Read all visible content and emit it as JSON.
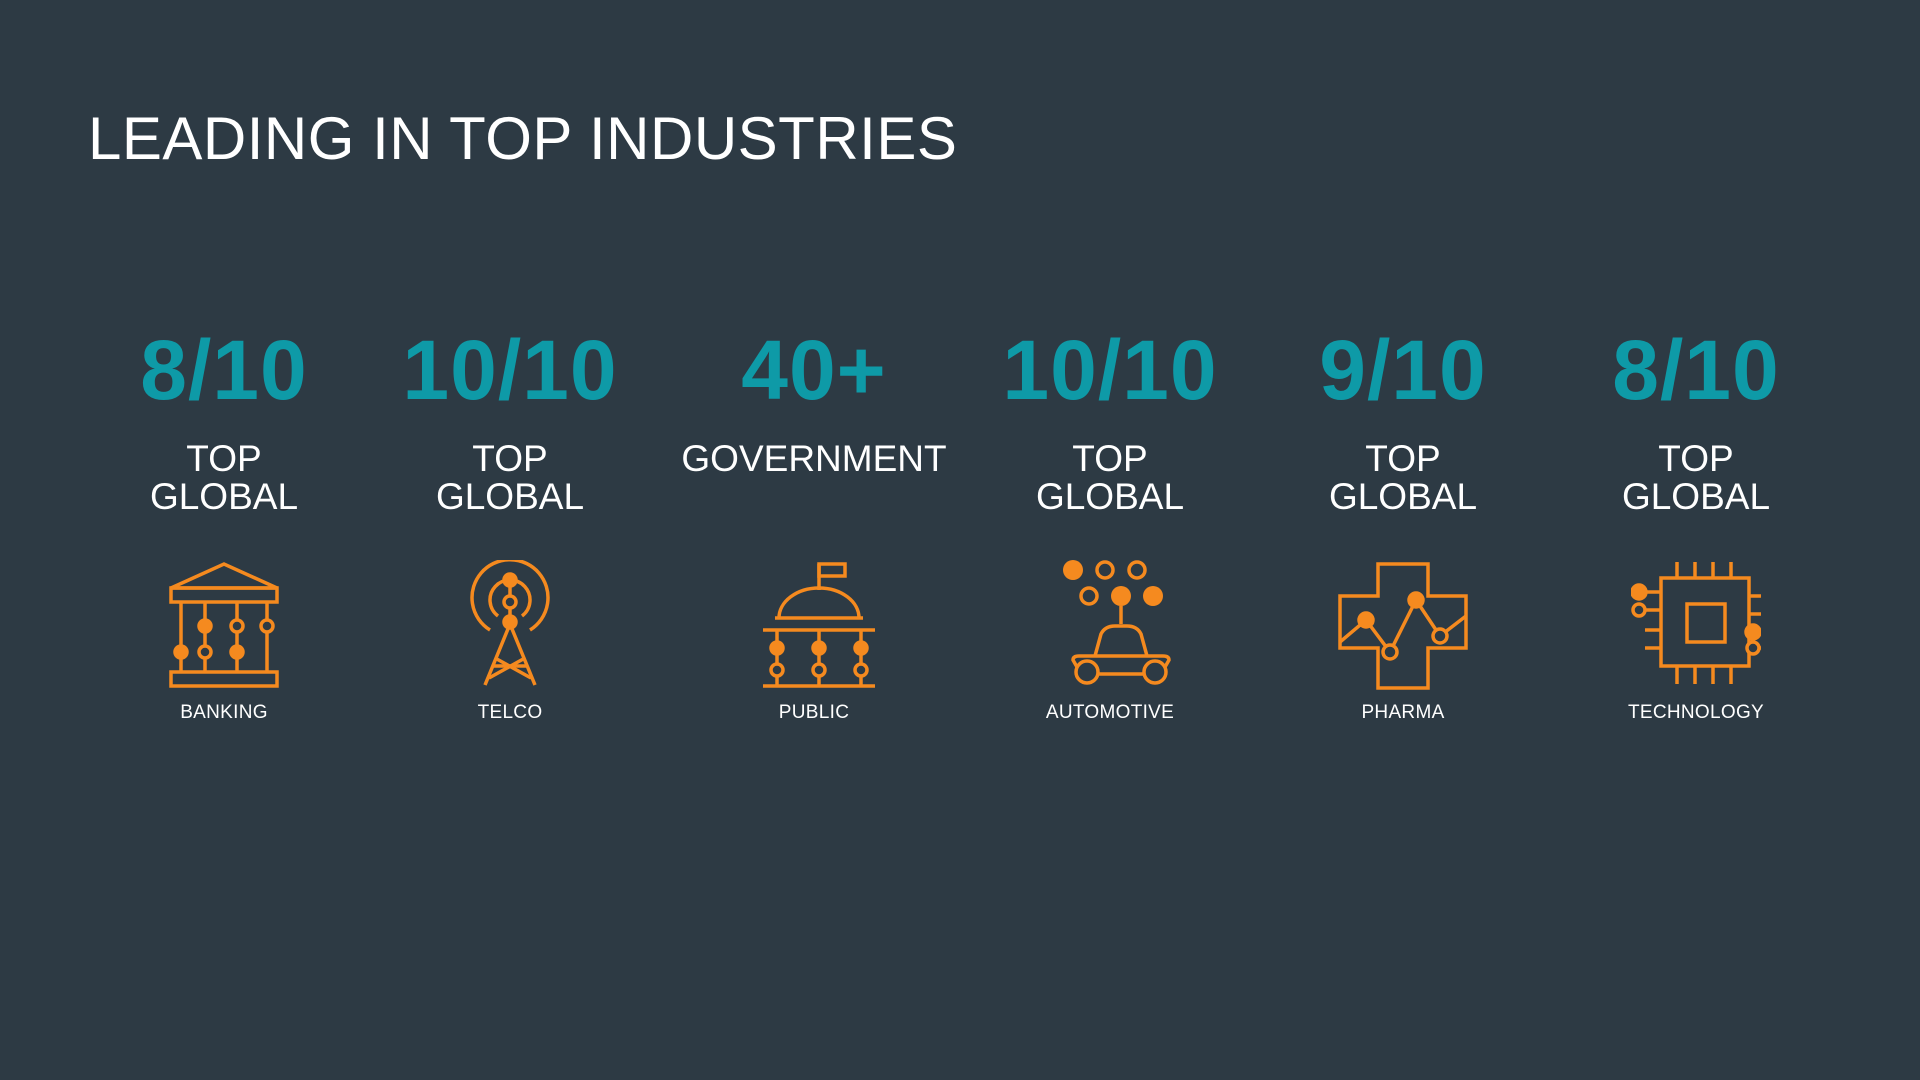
{
  "title": "LEADING IN TOP INDUSTRIES",
  "accent_color": "#0e9aa7",
  "icon_color": "#f58a1f",
  "industries": [
    {
      "stat": "8/10",
      "line1": "TOP",
      "line2": "GLOBAL",
      "label": "BANKING",
      "icon": "bank-icon"
    },
    {
      "stat": "10/10",
      "line1": "TOP",
      "line2": "GLOBAL",
      "label": "TELCO",
      "icon": "telecom-tower-icon"
    },
    {
      "stat": "40+",
      "line1": "GOVERNMENT",
      "line2": "",
      "label": "PUBLIC",
      "icon": "government-building-icon"
    },
    {
      "stat": "10/10",
      "line1": "TOP",
      "line2": "GLOBAL",
      "label": "AUTOMOTIVE",
      "icon": "connected-car-icon"
    },
    {
      "stat": "9/10",
      "line1": "TOP",
      "line2": "GLOBAL",
      "label": "PHARMA",
      "icon": "medical-cross-chart-icon"
    },
    {
      "stat": "8/10",
      "line1": "TOP",
      "line2": "GLOBAL",
      "label": "TECHNOLOGY",
      "icon": "cpu-chip-icon"
    }
  ]
}
